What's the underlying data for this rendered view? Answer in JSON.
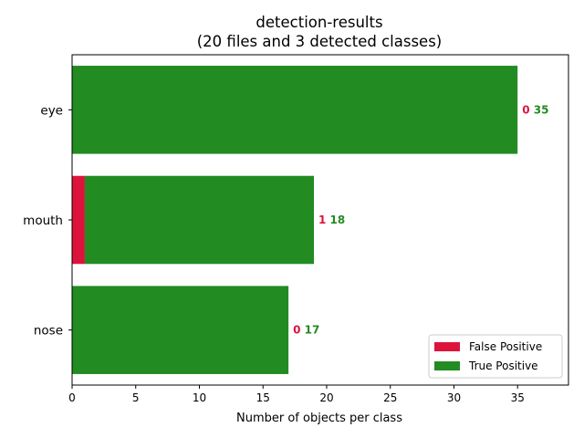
{
  "chart_data": {
    "type": "bar",
    "orientation": "horizontal",
    "stacked": true,
    "title": "detection-results",
    "subtitle": "(20 files and 3 detected classes)",
    "xlabel": "Number of objects per class",
    "ylabel": "",
    "xlim": [
      0,
      39
    ],
    "xticks": [
      0,
      5,
      10,
      15,
      20,
      25,
      30,
      35
    ],
    "categories": [
      "eye",
      "mouth",
      "nose"
    ],
    "series": [
      {
        "name": "False Positive",
        "color": "#dc143c",
        "values": [
          0,
          1,
          0
        ]
      },
      {
        "name": "True Positive",
        "color": "#228b22",
        "values": [
          35,
          18,
          17
        ]
      }
    ],
    "legend_position": "lower-right",
    "grid": false
  }
}
